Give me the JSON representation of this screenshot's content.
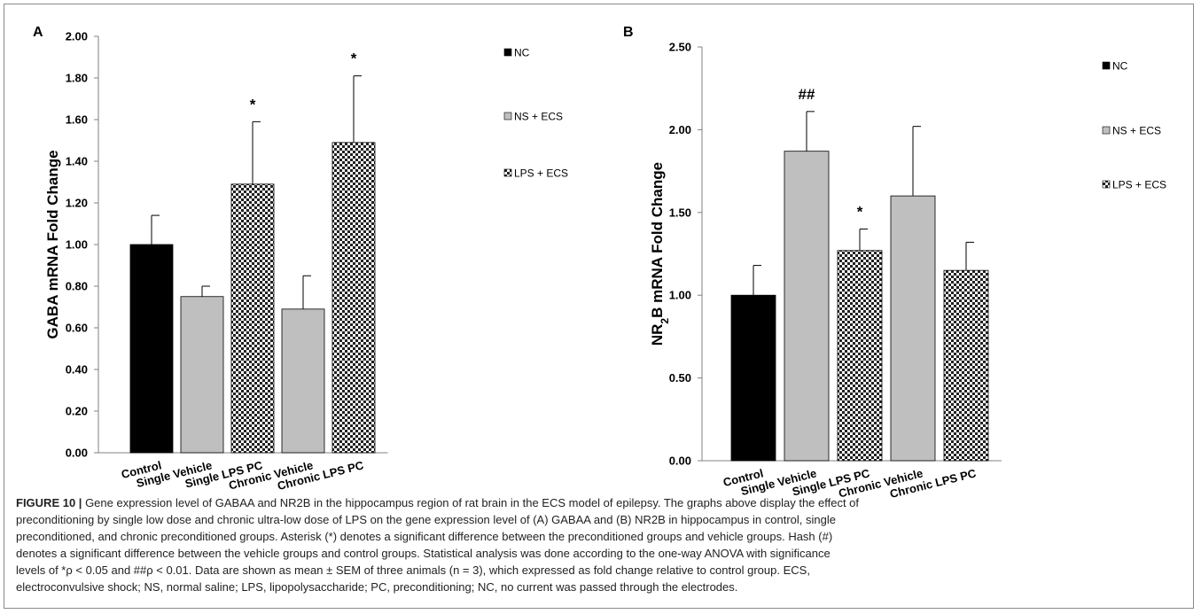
{
  "figure": {
    "caption": {
      "label": "FIGURE 10 |",
      "lines": [
        "Gene expression level of GABAA and NR2B in the hippocampus region of rat brain in the ECS model of epilepsy. The graphs above display the effect of",
        "preconditioning by single low dose and chronic ultra-low dose of LPS on the gene expression level of (A) GABAA and (B) NR2B in hippocampus in control, single",
        "preconditioned, and chronic preconditioned groups. Asterisk (*) denotes a significant difference between the preconditioned groups and vehicle groups. Hash (#)",
        "denotes a significant difference between the vehicle groups and control groups. Statistical analysis was done according to the one-way ANOVA with significance",
        "levels of *ρ < 0.05 and ##ρ < 0.01. Data are shown as mean ± SEM of three animals (n = 3), which expressed as fold change relative to control group. ECS,",
        "electroconvulsive shock; NS, normal saline; LPS, lipopolysaccharide; PC, preconditioning; NC, no current was passed through the electrodes."
      ]
    }
  },
  "chart_data": [
    {
      "panel": "A",
      "type": "bar",
      "ylabel": "GABA mRNA Fold Change",
      "ylim": [
        0,
        2.0
      ],
      "yticks": [
        "0.00",
        "0.20",
        "0.40",
        "0.60",
        "0.80",
        "1.00",
        "1.20",
        "1.40",
        "1.60",
        "1.80",
        "2.00"
      ],
      "categories": [
        "Control",
        "Single Vehicle",
        "Single LPS PC",
        "Chronic Vehicle",
        "Chronic LPS PC"
      ],
      "bars": [
        {
          "category": "Control",
          "series": "NC",
          "value": 1.0,
          "error": 0.14
        },
        {
          "category": "Single Vehicle",
          "series": "NS + ECS",
          "value": 0.75,
          "error": 0.05
        },
        {
          "category": "Single LPS PC",
          "series": "LPS + ECS",
          "value": 1.29,
          "error": 0.3,
          "annotation": "*"
        },
        {
          "category": "Chronic Vehicle",
          "series": "NS + ECS",
          "value": 0.69,
          "error": 0.16
        },
        {
          "category": "Chronic LPS PC",
          "series": "LPS + ECS",
          "value": 1.49,
          "error": 0.32,
          "annotation": "*"
        }
      ],
      "legend": [
        {
          "name": "NC",
          "fill": "#000000"
        },
        {
          "name": "NS + ECS",
          "fill": "#bfbfbf"
        },
        {
          "name": "LPS + ECS",
          "fill": "checker"
        }
      ],
      "legend_position": "right"
    },
    {
      "panel": "B",
      "type": "bar",
      "ylabel": "NR2B mRNA Fold Change",
      "ylim": [
        0,
        2.5
      ],
      "yticks": [
        "0.00",
        "0.50",
        "1.00",
        "1.50",
        "2.00",
        "2.50"
      ],
      "categories": [
        "Control",
        "Single Vehicle",
        "Single LPS PC",
        "Chronic Vehicle",
        "Chronic LPS PC"
      ],
      "bars": [
        {
          "category": "Control",
          "series": "NC",
          "value": 1.0,
          "error": 0.18
        },
        {
          "category": "Single Vehicle",
          "series": "NS + ECS",
          "value": 1.87,
          "error": 0.24,
          "annotation": "##"
        },
        {
          "category": "Single LPS PC",
          "series": "LPS + ECS",
          "value": 1.27,
          "error": 0.13,
          "annotation": "*"
        },
        {
          "category": "Chronic Vehicle",
          "series": "NS + ECS",
          "value": 1.6,
          "error": 0.42
        },
        {
          "category": "Chronic LPS PC",
          "series": "LPS + ECS",
          "value": 1.15,
          "error": 0.17
        }
      ],
      "legend": [
        {
          "name": "NC",
          "fill": "#000000"
        },
        {
          "name": "NS + ECS",
          "fill": "#bfbfbf"
        },
        {
          "name": "LPS + ECS",
          "fill": "checker"
        }
      ],
      "legend_position": "right"
    }
  ]
}
